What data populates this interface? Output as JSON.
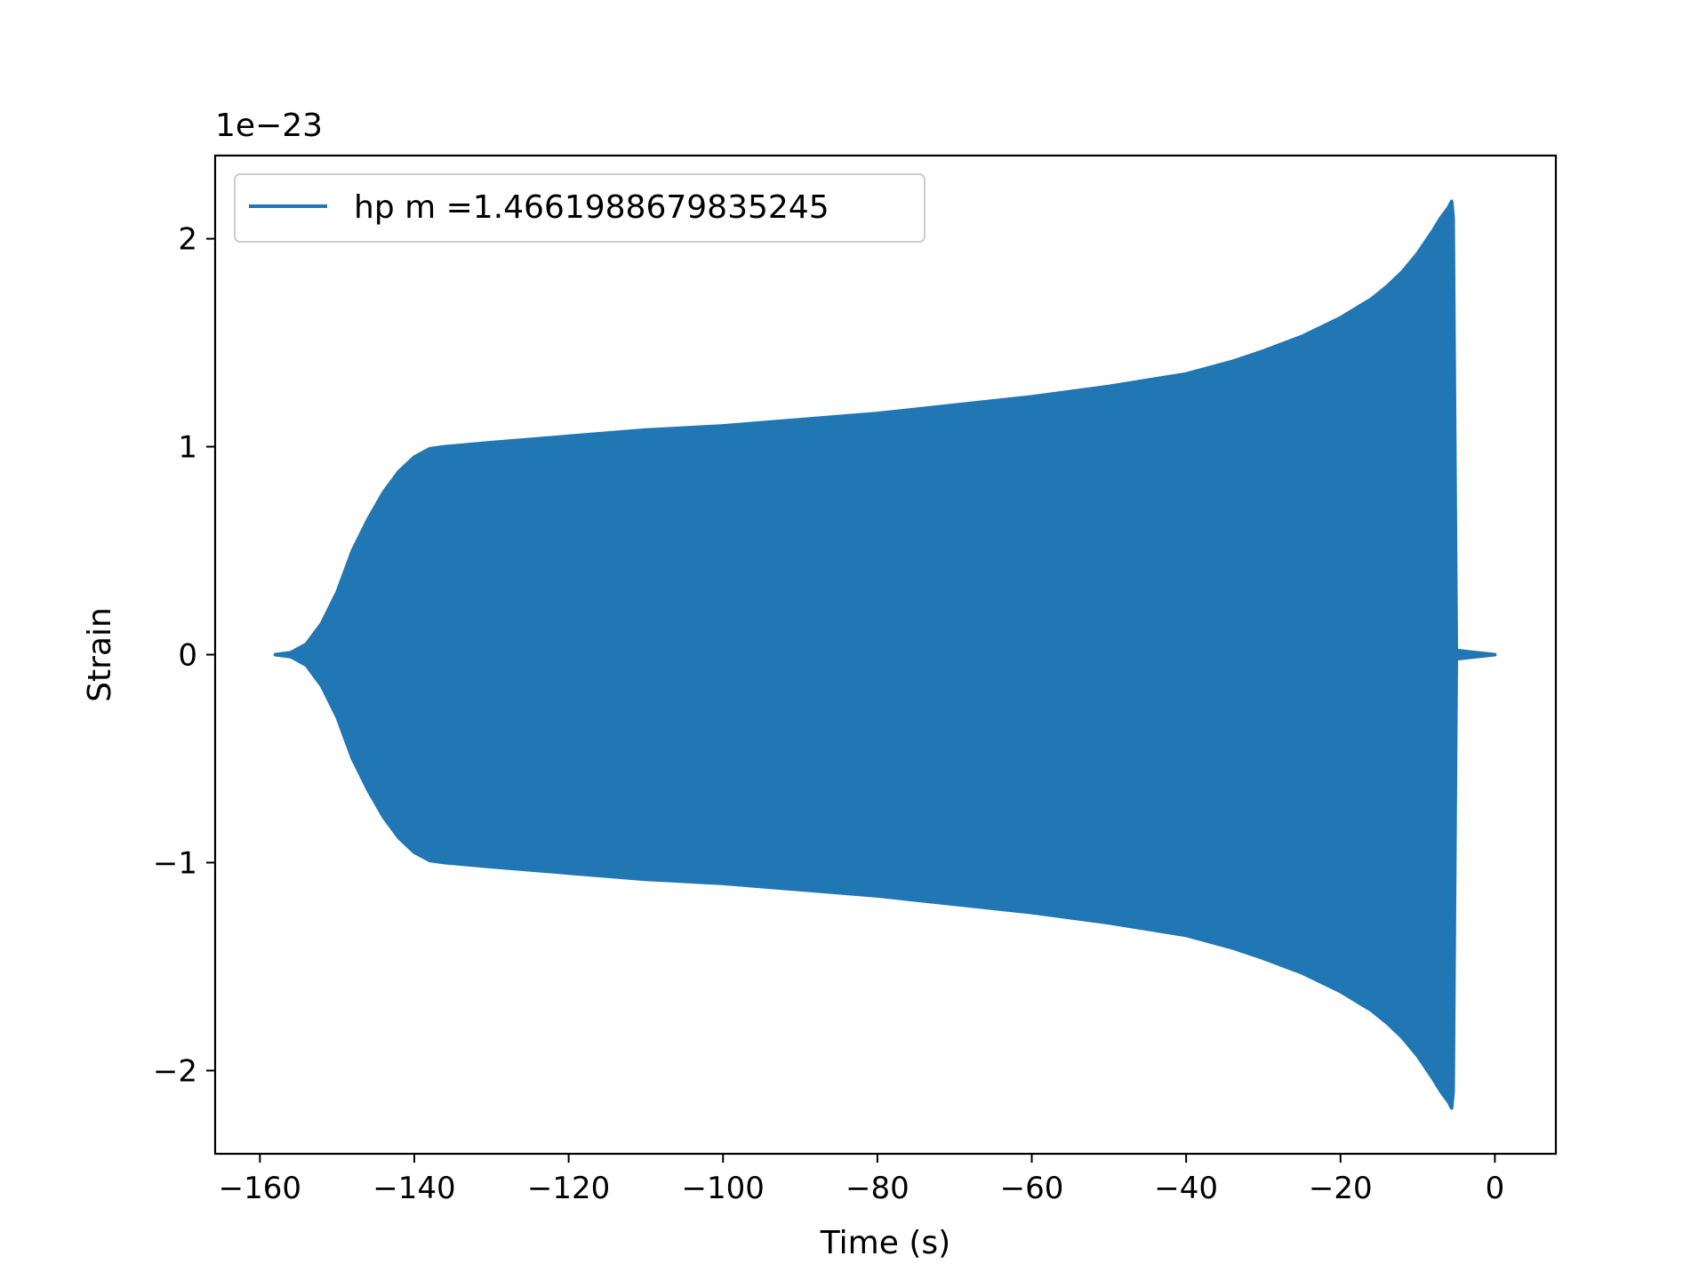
{
  "chart_data": {
    "type": "line",
    "title": "",
    "xlabel": "Time (s)",
    "ylabel": "Strain",
    "y_offset_label": "1e−23",
    "xlim": [
      -165.8,
      7.9
    ],
    "ylim": [
      -2.4,
      2.4
    ],
    "x_ticks": [
      -160,
      -140,
      -120,
      -100,
      -80,
      -60,
      -40,
      -20,
      0
    ],
    "x_tick_labels": [
      "−160",
      "−140",
      "−120",
      "−100",
      "−80",
      "−60",
      "−40",
      "−20",
      "0"
    ],
    "y_ticks": [
      -2,
      -1,
      0,
      1,
      2
    ],
    "y_tick_labels": [
      "−2",
      "−1",
      "0",
      "1",
      "2"
    ],
    "grid": false,
    "legend_position": "upper-left",
    "series": [
      {
        "name": "hp m =1.4661988679835245",
        "color": "#2077b4",
        "envelope": {
          "x": [
            -158,
            -156,
            -154,
            -152,
            -150,
            -148,
            -146,
            -144,
            -142,
            -140,
            -138,
            -136,
            -130,
            -120,
            -110,
            -100,
            -90,
            -80,
            -70,
            -60,
            -50,
            -40,
            -34,
            -30,
            -25,
            -20,
            -16,
            -14,
            -12,
            -10,
            -8,
            -7,
            -6,
            -5.6,
            -5.4,
            -5.0,
            0
          ],
          "upper": [
            0.0,
            0.01,
            0.05,
            0.15,
            0.3,
            0.5,
            0.65,
            0.78,
            0.88,
            0.95,
            0.99,
            1.0,
            1.02,
            1.05,
            1.08,
            1.1,
            1.13,
            1.16,
            1.2,
            1.24,
            1.29,
            1.35,
            1.41,
            1.46,
            1.53,
            1.62,
            1.71,
            1.77,
            1.84,
            1.93,
            2.04,
            2.1,
            2.15,
            2.18,
            2.1,
            0.02,
            0.0
          ],
          "lower": [
            0.0,
            -0.01,
            -0.05,
            -0.15,
            -0.3,
            -0.5,
            -0.65,
            -0.78,
            -0.88,
            -0.95,
            -0.99,
            -1.0,
            -1.02,
            -1.05,
            -1.08,
            -1.1,
            -1.13,
            -1.16,
            -1.2,
            -1.24,
            -1.29,
            -1.35,
            -1.41,
            -1.46,
            -1.53,
            -1.62,
            -1.71,
            -1.77,
            -1.84,
            -1.93,
            -2.04,
            -2.1,
            -2.15,
            -2.18,
            -2.1,
            -0.02,
            0.0
          ]
        }
      }
    ]
  }
}
